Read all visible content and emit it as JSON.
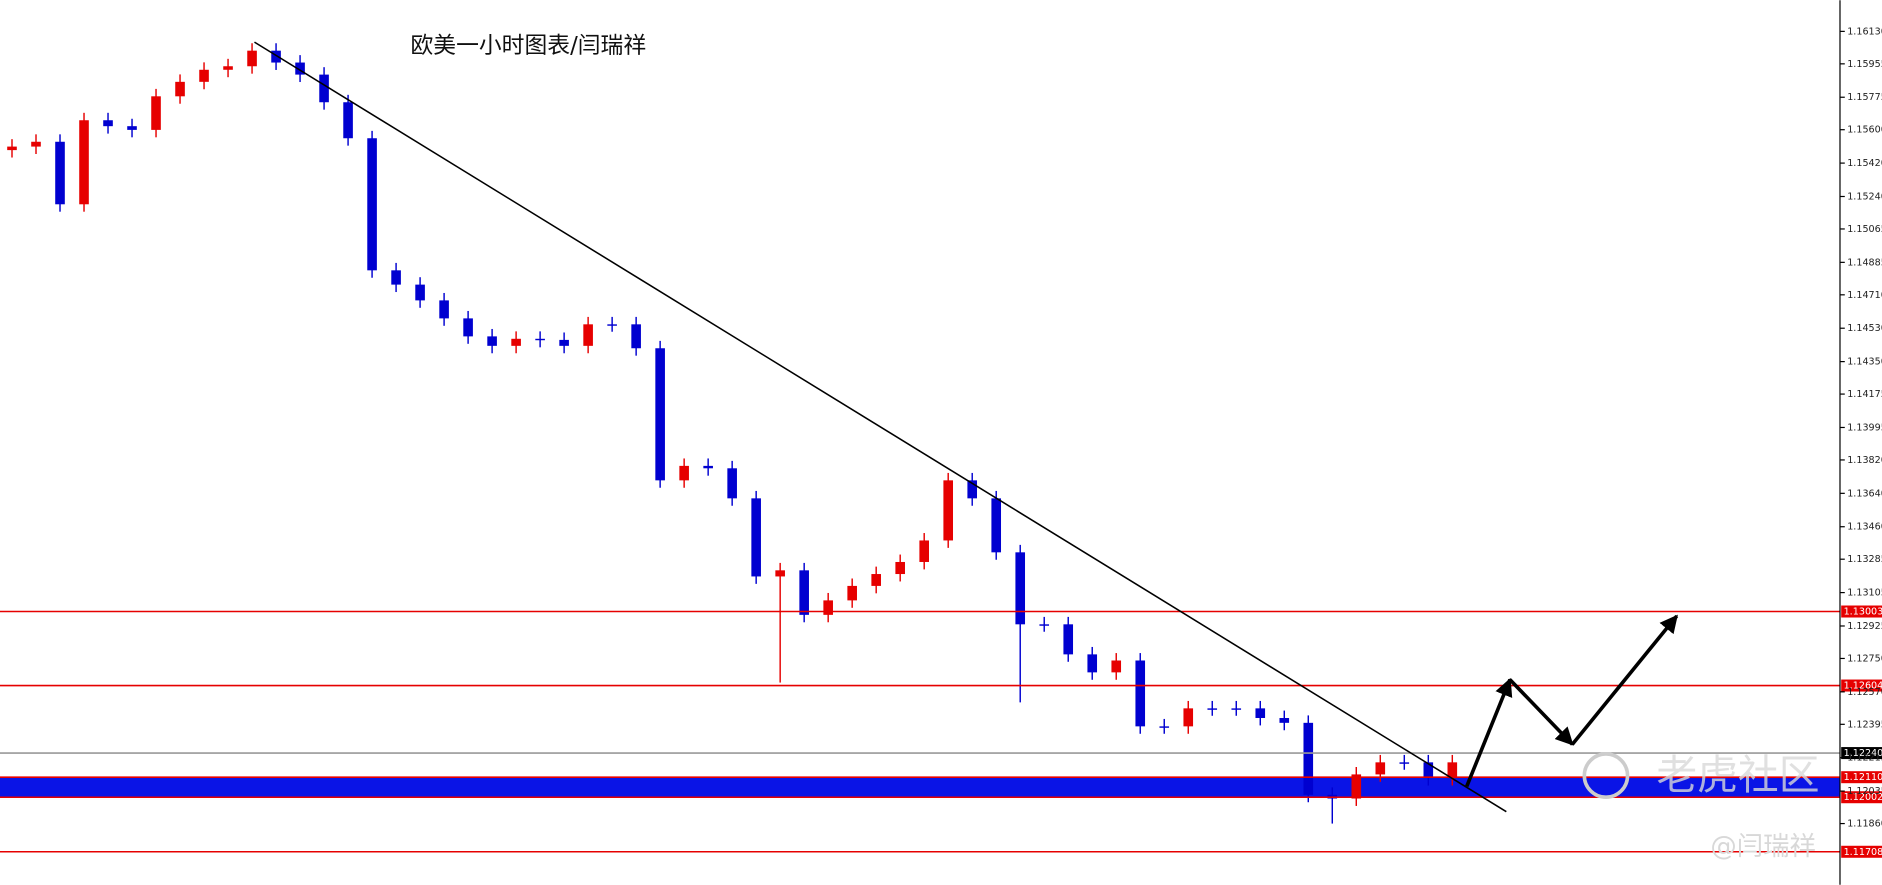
{
  "chart_data": {
    "type": "candlestick",
    "title": "欧美一小时图表/闫瑞祥",
    "up_color": "#e60000",
    "down_color": "#0000d0",
    "open": [
      1.1549,
      1.15509,
      1.15535,
      1.15198,
      1.15651,
      1.15619,
      1.15599,
      1.1578,
      1.15858,
      1.15923,
      1.15942,
      1.16026,
      1.15962,
      1.15897,
      1.15748,
      1.15554,
      1.14842,
      1.14765,
      1.1468,
      1.14583,
      1.14486,
      1.14435,
      1.14473,
      1.14467,
      1.14435,
      1.14551,
      1.14551,
      1.14422,
      1.1371,
      1.13788,
      1.13775,
      1.13613,
      1.13192,
      1.13225,
      1.12985,
      1.13063,
      1.13141,
      1.13205,
      1.1327,
      1.13386,
      1.1371,
      1.13613,
      1.13322,
      1.12934,
      1.12934,
      1.12772,
      1.12675,
      1.12739,
      1.12384,
      1.12384,
      1.12481,
      1.12481,
      1.12481,
      1.12429,
      1.12403,
      1.12015,
      1.11995,
      1.12125,
      1.1219,
      1.1219,
      1.12105
    ],
    "high": [
      1.15549,
      1.15575,
      1.15575,
      1.15691,
      1.15691,
      1.15659,
      1.1582,
      1.15898,
      1.15963,
      1.15982,
      1.16066,
      1.16066,
      1.16002,
      1.15937,
      1.15788,
      1.15594,
      1.14882,
      1.14805,
      1.1472,
      1.14623,
      1.14526,
      1.14513,
      1.14513,
      1.14507,
      1.14591,
      1.14591,
      1.14591,
      1.14462,
      1.13828,
      1.13828,
      1.13815,
      1.13653,
      1.13265,
      1.13265,
      1.13103,
      1.13181,
      1.13245,
      1.1331,
      1.13426,
      1.1375,
      1.1375,
      1.13653,
      1.13362,
      1.12974,
      1.12974,
      1.12812,
      1.12779,
      1.12779,
      1.12424,
      1.12521,
      1.12521,
      1.12521,
      1.12521,
      1.12469,
      1.12443,
      1.12055,
      1.12165,
      1.1223,
      1.1223,
      1.1223,
      1.1223
    ],
    "low": [
      1.1545,
      1.15469,
      1.15158,
      1.15158,
      1.15579,
      1.15559,
      1.15559,
      1.1574,
      1.15818,
      1.15883,
      1.15902,
      1.15922,
      1.15857,
      1.15708,
      1.15514,
      1.14802,
      1.14725,
      1.1464,
      1.14543,
      1.14446,
      1.14395,
      1.14395,
      1.14427,
      1.14395,
      1.14395,
      1.14511,
      1.14382,
      1.1367,
      1.1367,
      1.13735,
      1.13573,
      1.13152,
      1.1262,
      1.12945,
      1.12945,
      1.13023,
      1.13101,
      1.13165,
      1.1323,
      1.13346,
      1.13573,
      1.13282,
      1.12513,
      1.12894,
      1.12732,
      1.12635,
      1.12635,
      1.12344,
      1.12344,
      1.12344,
      1.12441,
      1.12441,
      1.12389,
      1.12363,
      1.11975,
      1.1186,
      1.11955,
      1.12085,
      1.1215,
      1.12065,
      1.12065
    ],
    "close": [
      1.15509,
      1.15535,
      1.15198,
      1.15651,
      1.15619,
      1.15599,
      1.1578,
      1.15858,
      1.15923,
      1.15942,
      1.16026,
      1.15962,
      1.15897,
      1.15748,
      1.15554,
      1.14842,
      1.14765,
      1.1468,
      1.14583,
      1.14486,
      1.14435,
      1.14473,
      1.14467,
      1.14435,
      1.14551,
      1.14551,
      1.14422,
      1.1371,
      1.13788,
      1.13775,
      1.13613,
      1.13192,
      1.13225,
      1.12985,
      1.13063,
      1.13141,
      1.13205,
      1.1327,
      1.13386,
      1.1371,
      1.13613,
      1.13322,
      1.12934,
      1.12934,
      1.12772,
      1.12675,
      1.12739,
      1.12384,
      1.12384,
      1.12481,
      1.12481,
      1.12481,
      1.12429,
      1.12403,
      1.12015,
      1.11995,
      1.12125,
      1.1219,
      1.1219,
      1.12105,
      1.1219
    ],
    "ylim": [
      1.1153,
      1.16298
    ],
    "yticks": [
      {
        "value": 1.1613,
        "label": "1.16130"
      },
      1.15955,
      1.15775,
      {
        "value": 1.156,
        "label": "1.15600"
      },
      {
        "value": 1.1542,
        "label": "1.15420"
      },
      {
        "value": 1.1524,
        "label": "1.15240"
      },
      1.15065,
      1.14885,
      {
        "value": 1.1471,
        "label": "1.14710"
      },
      {
        "value": 1.1453,
        "label": "1.14530"
      },
      {
        "value": 1.1435,
        "label": "1.14350"
      },
      1.14175,
      1.13995,
      {
        "value": 1.1382,
        "label": "1.13820"
      },
      {
        "value": 1.1364,
        "label": "1.13640"
      },
      {
        "value": 1.1346,
        "label": "1.13460"
      },
      1.13285,
      1.13105,
      1.12925,
      {
        "value": 1.1275,
        "label": "1.12750"
      },
      {
        "value": 1.1257,
        "label": "1.12570"
      },
      1.12395,
      1.12215,
      1.12035,
      {
        "value": 1.1186,
        "label": "1.11860"
      }
    ],
    "levels": [
      {
        "value": 1.13003,
        "color": "#e60000"
      },
      {
        "value": 1.12604,
        "color": "#e60000"
      },
      {
        "value": 1.1224,
        "label": "1.12240",
        "color": "#999999"
      },
      {
        "value": 1.1211,
        "label": "1.12110",
        "color": "#e60000"
      },
      {
        "value": 1.12002,
        "color": "#e60000"
      },
      {
        "value": 1.11708,
        "color": "#e60000"
      }
    ],
    "band": {
      "top": 1.1211,
      "bottom": 1.12002,
      "color": "#0a14e6"
    },
    "trendline": {
      "x": [
        10.1,
        62.25
      ],
      "y": [
        1.16072,
        1.11924
      ]
    },
    "projection": {
      "x": [
        60.6,
        62.4,
        65,
        69.35
      ],
      "y": [
        1.1206,
        1.12636,
        1.12287,
        1.12979
      ]
    },
    "watermarks": [
      "老虎社区",
      "@闫瑞祥"
    ]
  }
}
